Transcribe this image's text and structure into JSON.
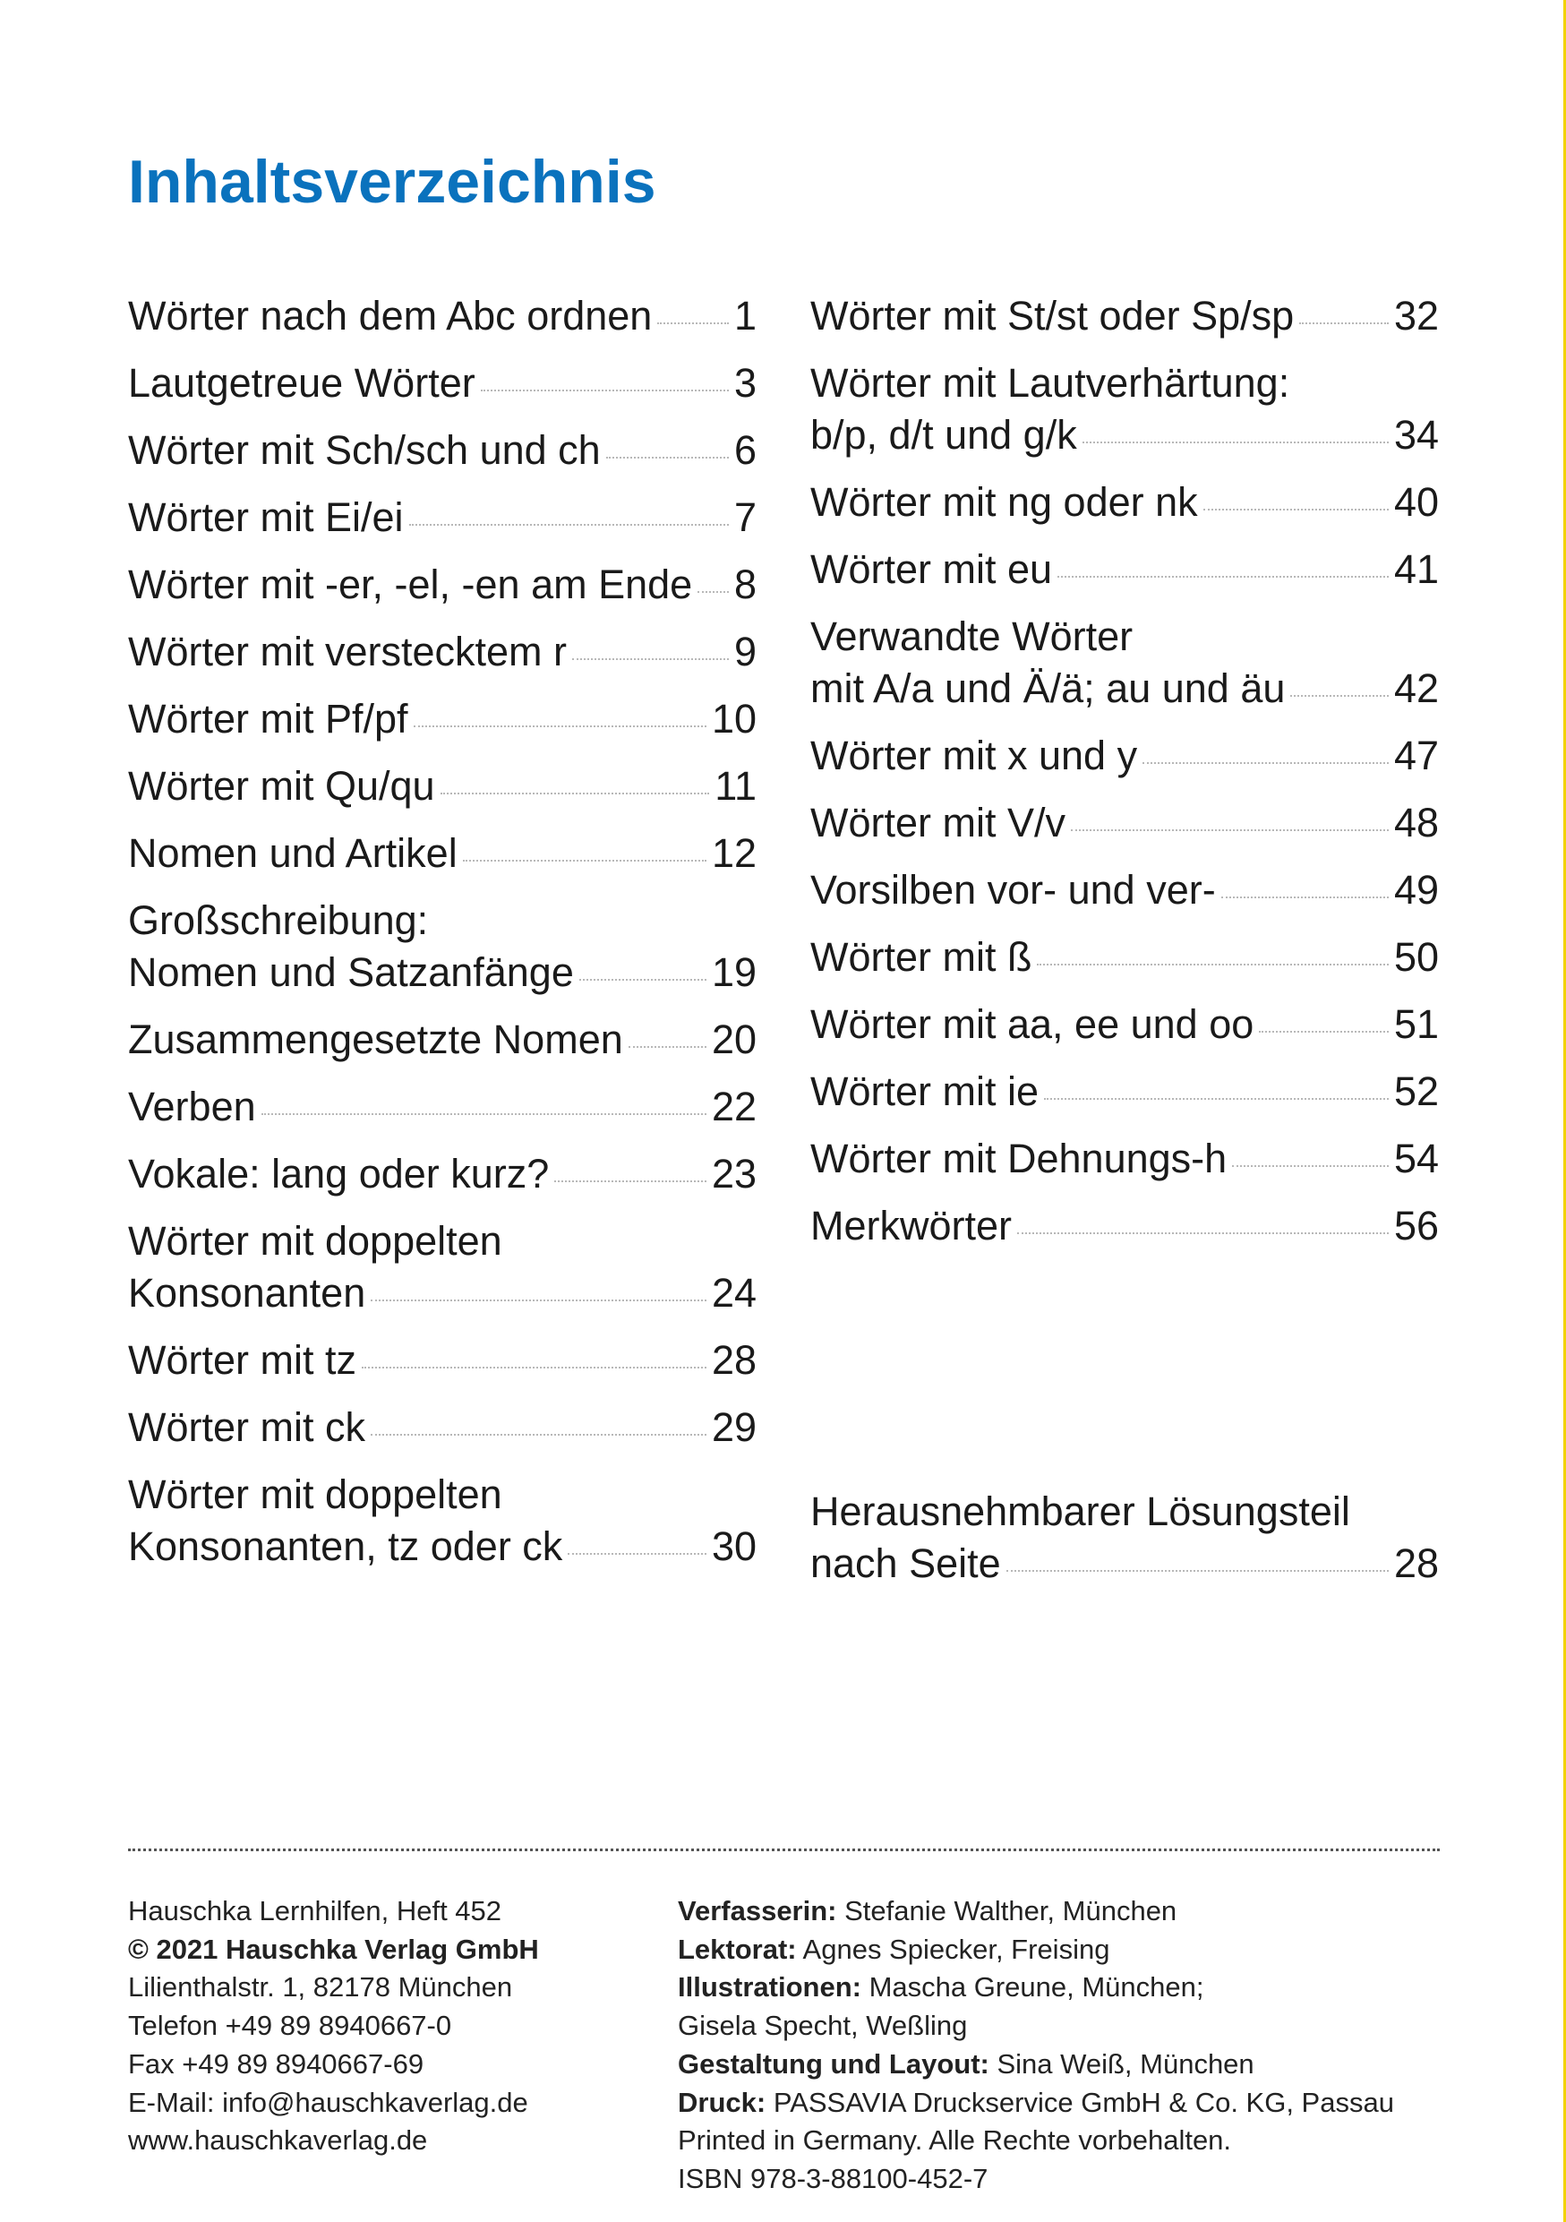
{
  "title": "Inhaltsverzeichnis",
  "colors": {
    "title": "#0a72bd",
    "edge": "#f2d200"
  },
  "toc_left": [
    {
      "lines": [
        "Wörter nach dem Abc ordnen"
      ],
      "page": "1"
    },
    {
      "lines": [
        "Lautgetreue Wörter"
      ],
      "page": "3"
    },
    {
      "lines": [
        "Wörter mit Sch/sch und ch"
      ],
      "page": "6"
    },
    {
      "lines": [
        "Wörter mit Ei/ei"
      ],
      "page": "7"
    },
    {
      "lines": [
        "Wörter mit -er, -el, -en am Ende"
      ],
      "page": "8"
    },
    {
      "lines": [
        "Wörter mit verstecktem r"
      ],
      "page": "9"
    },
    {
      "lines": [
        "Wörter mit Pf/pf"
      ],
      "page": "10"
    },
    {
      "lines": [
        "Wörter mit Qu/qu"
      ],
      "page": "11"
    },
    {
      "lines": [
        "Nomen und Artikel"
      ],
      "page": "12"
    },
    {
      "lines": [
        "Großschreibung:",
        "Nomen und Satzanfänge"
      ],
      "page": "19"
    },
    {
      "lines": [
        "Zusammengesetzte Nomen"
      ],
      "page": "20"
    },
    {
      "lines": [
        "Verben"
      ],
      "page": "22"
    },
    {
      "lines": [
        "Vokale: lang oder kurz?"
      ],
      "page": "23"
    },
    {
      "lines": [
        "Wörter mit doppelten",
        "Konsonanten"
      ],
      "page": "24"
    },
    {
      "lines": [
        "Wörter mit tz"
      ],
      "page": "28"
    },
    {
      "lines": [
        "Wörter mit ck"
      ],
      "page": "29"
    },
    {
      "lines": [
        "Wörter mit doppelten",
        "Konsonanten, tz oder ck"
      ],
      "page": "30"
    }
  ],
  "toc_right": [
    {
      "lines": [
        "Wörter mit St/st oder Sp/sp"
      ],
      "page": "32"
    },
    {
      "lines": [
        "Wörter mit Lautverhärtung:",
        "b/p, d/t und g/k"
      ],
      "page": "34"
    },
    {
      "lines": [
        "Wörter mit ng oder nk"
      ],
      "page": "40"
    },
    {
      "lines": [
        "Wörter mit eu"
      ],
      "page": "41"
    },
    {
      "lines": [
        "Verwandte Wörter",
        "mit A/a und Ä/ä; au und äu"
      ],
      "page": "42"
    },
    {
      "lines": [
        "Wörter mit x und y"
      ],
      "page": "47"
    },
    {
      "lines": [
        "Wörter mit V/v"
      ],
      "page": "48"
    },
    {
      "lines": [
        "Vorsilben vor- und ver-"
      ],
      "page": "49"
    },
    {
      "lines": [
        "Wörter mit ß"
      ],
      "page": "50"
    },
    {
      "lines": [
        "Wörter mit aa, ee und oo"
      ],
      "page": "51"
    },
    {
      "lines": [
        "Wörter mit ie"
      ],
      "page": "52"
    },
    {
      "lines": [
        "Wörter mit Dehnungs-h"
      ],
      "page": "54"
    },
    {
      "lines": [
        "Merkwörter"
      ],
      "page": "56"
    }
  ],
  "toc_solutions": {
    "lines": [
      "Herausnehmbarer Lösungsteil",
      "nach Seite"
    ],
    "page": "28"
  },
  "imprint_left": [
    {
      "bold": "",
      "text": "Hauschka Lernhilfen, Heft 452"
    },
    {
      "bold": "© 2021 Hauschka Verlag GmbH",
      "text": ""
    },
    {
      "bold": "",
      "text": "Lilienthalstr. 1, 82178 München"
    },
    {
      "bold": "",
      "text": "Telefon +49 89 8940667-0"
    },
    {
      "bold": "",
      "text": "Fax +49 89 8940667-69"
    },
    {
      "bold": "",
      "text": "E-Mail: info@hauschkaverlag.de"
    },
    {
      "bold": "",
      "text": "www.hauschkaverlag.de"
    }
  ],
  "imprint_right": [
    {
      "bold": "Verfasserin:",
      "text": " Stefanie Walther, München"
    },
    {
      "bold": "Lektorat:",
      "text": " Agnes Spiecker, Freising"
    },
    {
      "bold": "Illustrationen:",
      "text": " Mascha Greune, München;"
    },
    {
      "bold": "",
      "text": "Gisela Specht, Weßling"
    },
    {
      "bold": "Gestaltung und Layout:",
      "text": " Sina Weiß, München"
    },
    {
      "bold": "Druck:",
      "text": " PASSAVIA Druckservice GmbH & Co. KG, Passau"
    },
    {
      "bold": "",
      "text": "Printed in Germany. Alle Rechte vorbehalten."
    },
    {
      "bold": "",
      "text": "ISBN 978-3-88100-452-7"
    }
  ]
}
